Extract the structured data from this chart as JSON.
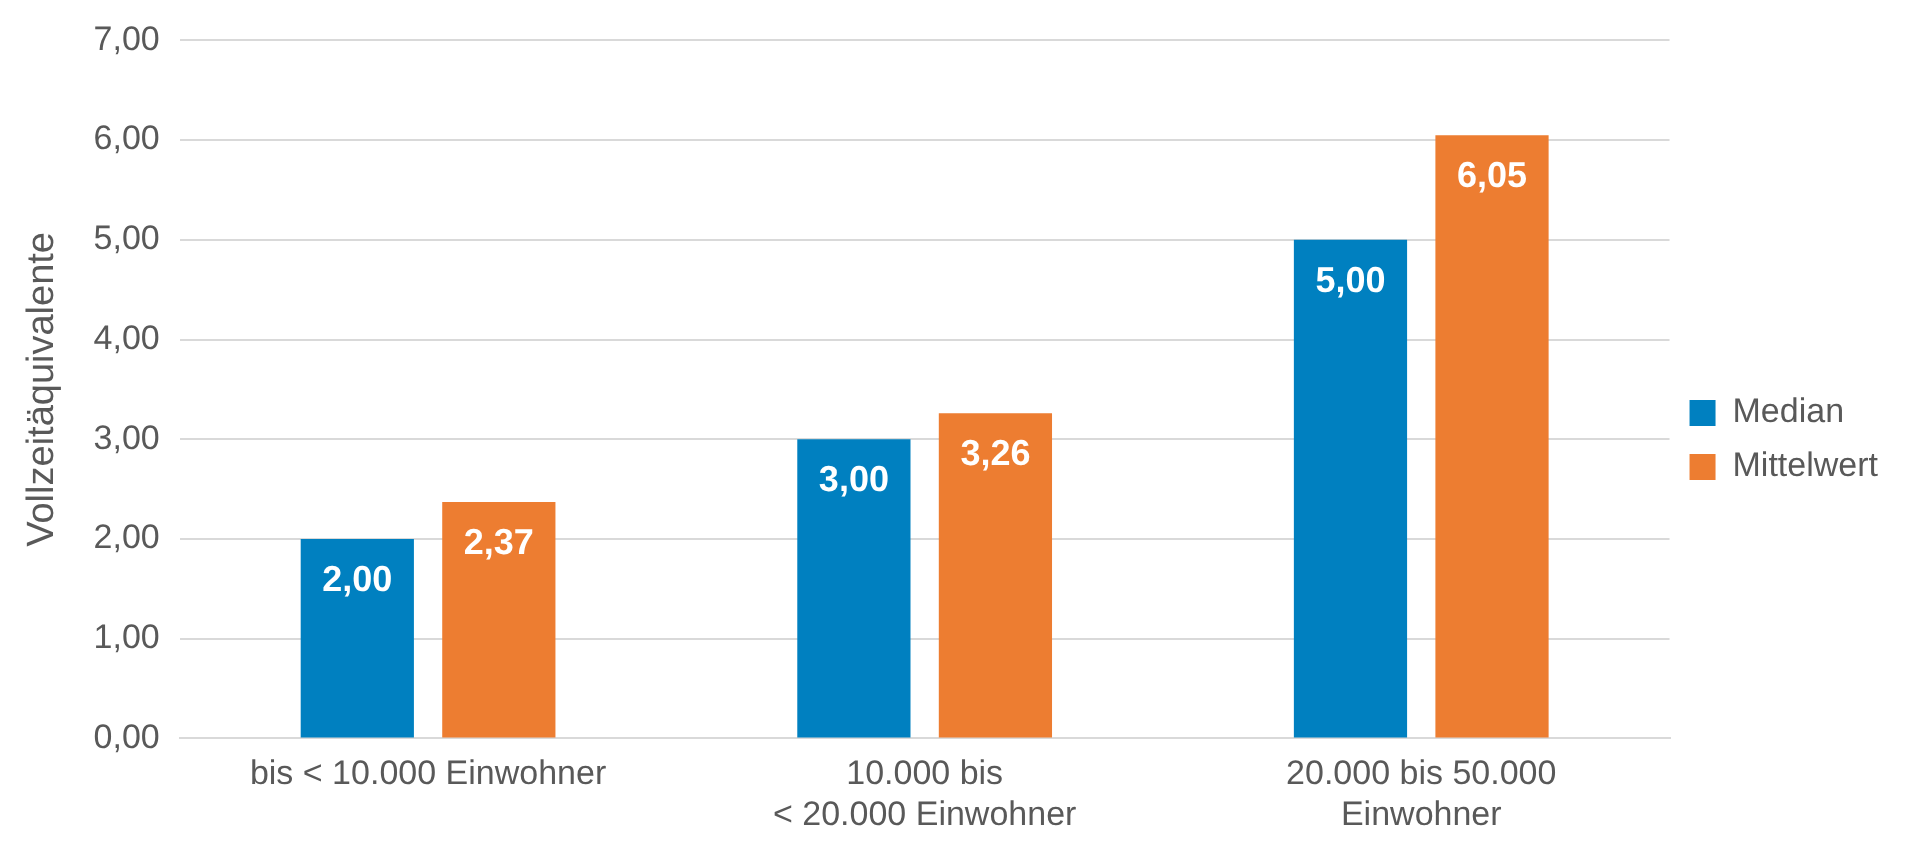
{
  "chart_data": {
    "type": "bar",
    "ylabel": "Vollzeitäquivalente",
    "categories": [
      "bis < 10.000 Einwohner",
      "10.000 bis\n< 20.000 Einwohner",
      "20.000 bis 50.000\nEinwohner"
    ],
    "series": [
      {
        "name": "Median",
        "color": "#0080c0",
        "values": [
          2.0,
          3.0,
          5.0
        ],
        "value_labels": [
          "2,00",
          "3,00",
          "5,00"
        ]
      },
      {
        "name": "Mittelwert",
        "color": "#ed7d31",
        "values": [
          2.37,
          3.26,
          6.05
        ],
        "value_labels": [
          "2,37",
          "3,26",
          "6,05"
        ]
      }
    ],
    "ylim": [
      0,
      7
    ],
    "yticks": [
      {
        "value": 0,
        "label": "0,00"
      },
      {
        "value": 1,
        "label": "1,00"
      },
      {
        "value": 2,
        "label": "2,00"
      },
      {
        "value": 3,
        "label": "3,00"
      },
      {
        "value": 4,
        "label": "4,00"
      },
      {
        "value": 5,
        "label": "5,00"
      },
      {
        "value": 6,
        "label": "6,00"
      },
      {
        "value": 7,
        "label": "7,00"
      }
    ],
    "grid": "y",
    "legend": "right"
  }
}
